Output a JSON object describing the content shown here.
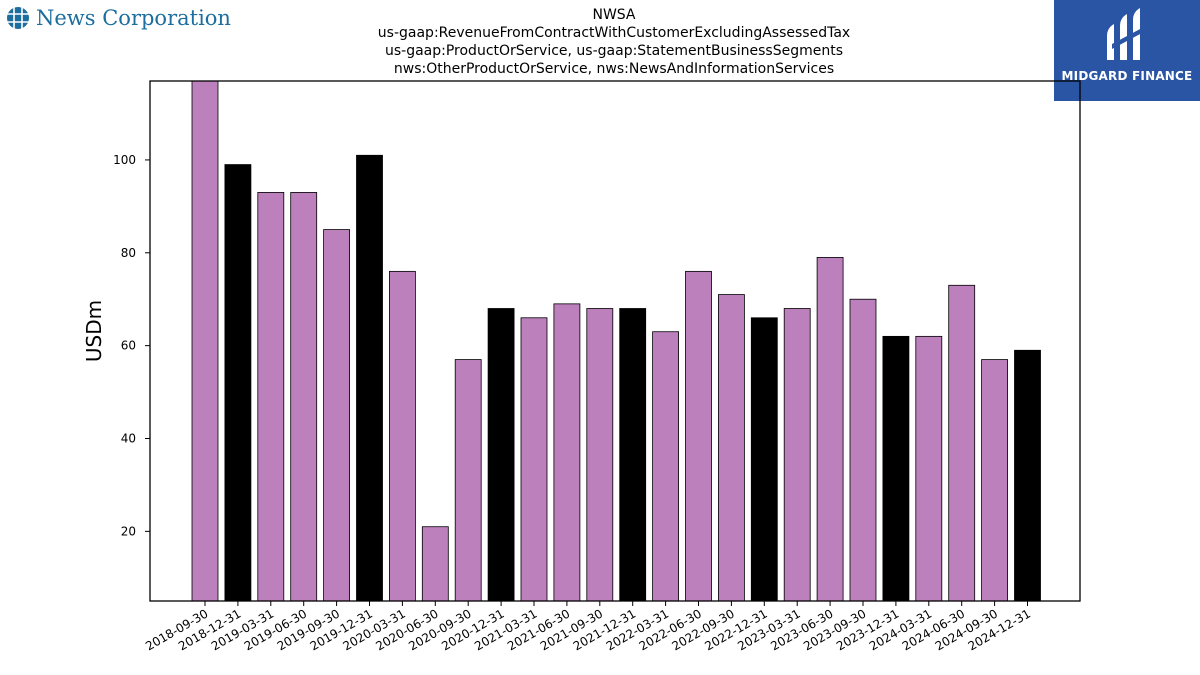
{
  "brand": {
    "left_logo_text": "News Corporation",
    "right_logo_text": "MIDGARD FINANCE"
  },
  "chart_data": {
    "type": "bar",
    "title": [
      "NWSA",
      "us-gaap:RevenueFromContractWithCustomerExcludingAssessedTax",
      "us-gaap:ProductOrService, us-gaap:StatementBusinessSegments",
      "nws:OtherProductOrService, nws:NewsAndInformationServices"
    ],
    "xlabel": "",
    "ylabel": "USDm",
    "ylim": [
      5,
      117
    ],
    "yticks": [
      20,
      40,
      60,
      80,
      100
    ],
    "grid": false,
    "categories": [
      "2018-09-30",
      "2018-12-31",
      "2019-03-31",
      "2019-06-30",
      "2019-09-30",
      "2019-12-31",
      "2020-03-31",
      "2020-06-30",
      "2020-09-30",
      "2020-12-31",
      "2021-03-31",
      "2021-06-30",
      "2021-09-30",
      "2021-12-31",
      "2022-03-31",
      "2022-06-30",
      "2022-09-30",
      "2022-12-31",
      "2023-03-31",
      "2023-06-30",
      "2023-09-30",
      "2023-12-31",
      "2024-03-31",
      "2024-06-30",
      "2024-09-30",
      "2024-12-31"
    ],
    "values": [
      117,
      99,
      93,
      93,
      85,
      101,
      76,
      21,
      57,
      68,
      66,
      69,
      68,
      68,
      63,
      76,
      71,
      66,
      68,
      79,
      70,
      62,
      62,
      73,
      57,
      59
    ],
    "colors": {
      "default": "#bc80bd",
      "q4": "#000000",
      "edge": "#000000"
    }
  }
}
